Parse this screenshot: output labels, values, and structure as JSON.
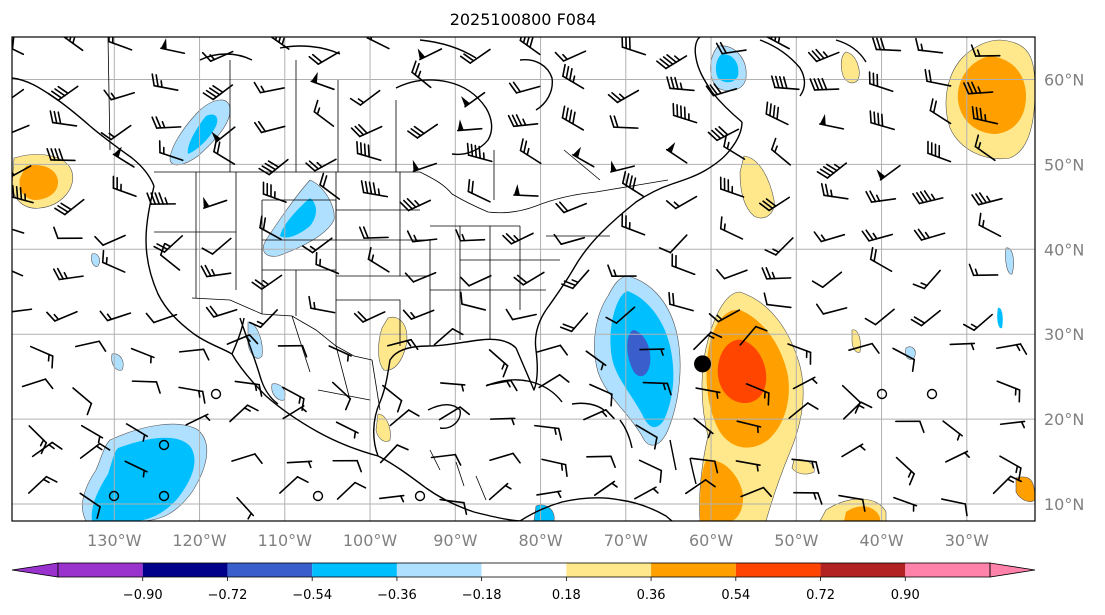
{
  "title": "2025100800 F084",
  "lon_labels": [
    "130°W",
    "120°W",
    "110°W",
    "100°W",
    "90°W",
    "80°W",
    "70°W",
    "60°W",
    "50°W",
    "40°W",
    "30°W"
  ],
  "lat_labels": [
    "60°N",
    "50°N",
    "40°N",
    "30°N",
    "20°N",
    "10°N"
  ],
  "colorbar": {
    "ticks": [
      "−0.90",
      "−0.72",
      "−0.54",
      "−0.36",
      "−0.18",
      "0.18",
      "0.36",
      "0.54",
      "0.72",
      "0.90"
    ],
    "colors": [
      "#9a32cd",
      "#00008b",
      "#3a5fcd",
      "#00bfff",
      "#b0e0ff",
      "#ffffff",
      "#ffe88c",
      "#ff9f00",
      "#ff4500",
      "#b22222",
      "#ff82ab"
    ],
    "under_color": "#9a32cd",
    "over_color": "#ff82ab"
  },
  "storm_marker": {
    "lon": -61,
    "lat": 26.5
  },
  "map_extent": {
    "lon": [
      -142,
      -22
    ],
    "lat": [
      8,
      65
    ]
  }
}
